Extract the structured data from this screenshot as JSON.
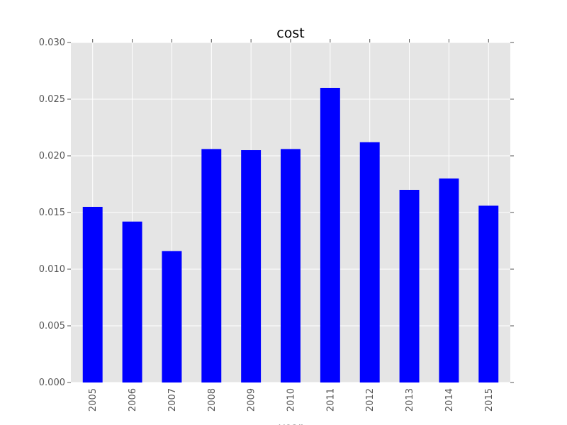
{
  "chart_data": {
    "type": "bar",
    "title": "cost",
    "xlabel": "year",
    "ylabel": "",
    "categories": [
      "2005",
      "2006",
      "2007",
      "2008",
      "2009",
      "2010",
      "2011",
      "2012",
      "2013",
      "2014",
      "2015"
    ],
    "values": [
      0.0155,
      0.0142,
      0.0116,
      0.0206,
      0.0205,
      0.0206,
      0.026,
      0.0212,
      0.017,
      0.018,
      0.0156
    ],
    "ylim": [
      0,
      0.03
    ],
    "yticks": [
      "0.000",
      "0.005",
      "0.010",
      "0.015",
      "0.020",
      "0.025",
      "0.030"
    ],
    "grid": true,
    "legend": "none",
    "bar_color": "#0000ff",
    "plot_background": "#e5e5e5",
    "grid_color": "#ffffff"
  }
}
